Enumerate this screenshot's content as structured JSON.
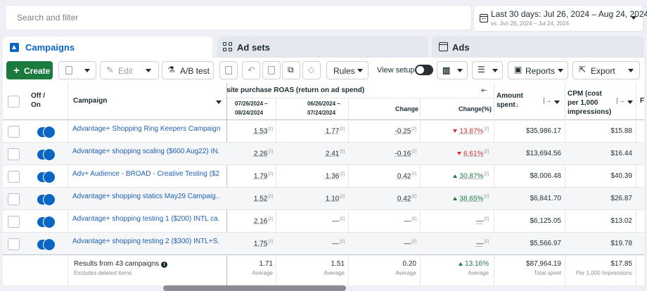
{
  "search": {
    "placeholder": "Search and filter"
  },
  "date_range": {
    "label": "Last 30 days: Jul 26, 2024 – Aug 24, 2024",
    "compare": "vs. Jun 26, 2024 – Jul 24, 2024"
  },
  "tabs": [
    {
      "label": "Campaigns"
    },
    {
      "label": "Ad sets"
    },
    {
      "label": "Ads"
    }
  ],
  "toolbar": {
    "create": "Create",
    "edit": "Edit",
    "ab_test": "A/B test",
    "rules": "Rules",
    "view_setup": "View setup",
    "reports": "Reports",
    "export": "Export"
  },
  "columns": {
    "off_on": "Off /",
    "off_on2": "On",
    "campaign": "Campaign",
    "roas_group": "site purchase ROAS (return on ad spend)",
    "period_current": "07/26/2024 –",
    "period_current2": "08/24/2024",
    "period_prev": "06/26/2024 –",
    "period_prev2": "07/24/2024",
    "change": "Change",
    "change_pct": "Change(%)",
    "amount_spent": "Amount",
    "amount_spent2": "spent",
    "cpm": "CPM (cost",
    "cpm2": "per 1,000",
    "cpm3": "impressions)",
    "next": "F"
  },
  "rows": [
    {
      "name": "Advantage+ Shopping Ring Keepers Campaign",
      "cur": "1.53",
      "prev": "1.77",
      "chg": "-0.25",
      "pct": "13.87%",
      "dir": "dn",
      "spent": "$35,986.17",
      "cpm": "$15.88"
    },
    {
      "name": "Advantage+ shopping scaling ($600 Aug22) IN...",
      "cur": "2.26",
      "prev": "2.41",
      "chg": "-0.16",
      "pct": "6.61%",
      "dir": "dn",
      "spent": "$13,694.56",
      "cpm": "$16.44"
    },
    {
      "name": "Adv+ Audience - BROAD - Creative Testing ($2...",
      "cur": "1.79",
      "prev": "1.36",
      "chg": "0.42",
      "pct": "30.87%",
      "dir": "up",
      "spent": "$8,006.48",
      "cpm": "$40.39"
    },
    {
      "name": "Advantage+ shopping statics May29 Campaig...",
      "cur": "1.52",
      "prev": "1.10",
      "chg": "0.42",
      "pct": "38.65%",
      "dir": "up",
      "spent": "$6,841.70",
      "cpm": "$26.87"
    },
    {
      "name": "Advantage+ shopping testing 1 ($200) INTL ca...",
      "cur": "2.16",
      "prev": "—",
      "chg": "—",
      "pct": "—",
      "dir": "none",
      "spent": "$6,125.05",
      "cpm": "$13.02"
    },
    {
      "name": "Advantage+ shopping testing 2 ($300) INTL+S...",
      "cur": "1.75",
      "prev": "—",
      "chg": "—",
      "pct": "—",
      "dir": "none",
      "spent": "$5,566.97",
      "cpm": "$19.78"
    }
  ],
  "sup": "[2]",
  "footer": {
    "results": "Results from 43 campaigns",
    "excluded": "Excludes deleted items",
    "cur": "1.71",
    "prev": "1.51",
    "chg": "0.20",
    "pct": "13.16%",
    "spent": "$87,964.19",
    "cpm": "$17.85",
    "avg": "Average",
    "total_spent": "Total spent",
    "per_1000": "Per 1,000 Impressions"
  }
}
